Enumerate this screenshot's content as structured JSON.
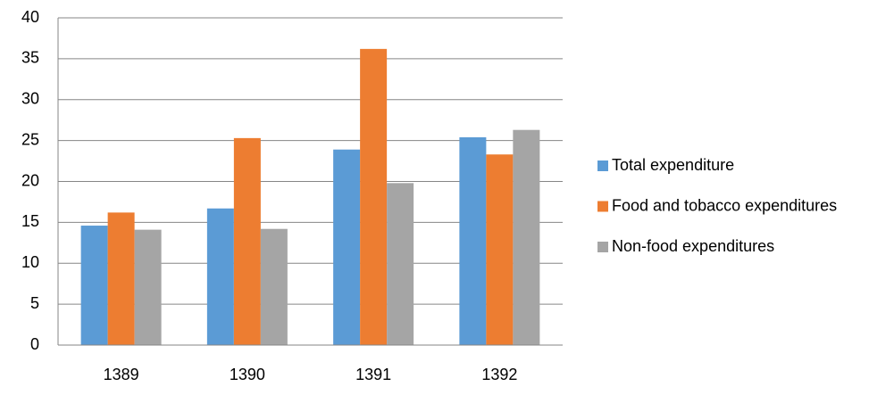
{
  "chart_data": {
    "type": "bar",
    "categories": [
      "1389",
      "1390",
      "1391",
      "1392"
    ],
    "series": [
      {
        "name": "Total expenditure",
        "color": "#5b9bd5",
        "values": [
          14.6,
          16.7,
          23.9,
          25.4
        ]
      },
      {
        "name": "Food and tobacco expenditures",
        "color": "#ed7d31",
        "values": [
          16.2,
          25.3,
          36.2,
          23.3
        ]
      },
      {
        "name": "Non-food expenditures",
        "color": "#a5a5a5",
        "values": [
          14.1,
          14.2,
          19.8,
          26.3
        ]
      }
    ],
    "ylim": [
      0,
      40
    ],
    "yticks": [
      0,
      5,
      10,
      15,
      20,
      25,
      30,
      35,
      40
    ],
    "grid": true,
    "legend": "right"
  }
}
